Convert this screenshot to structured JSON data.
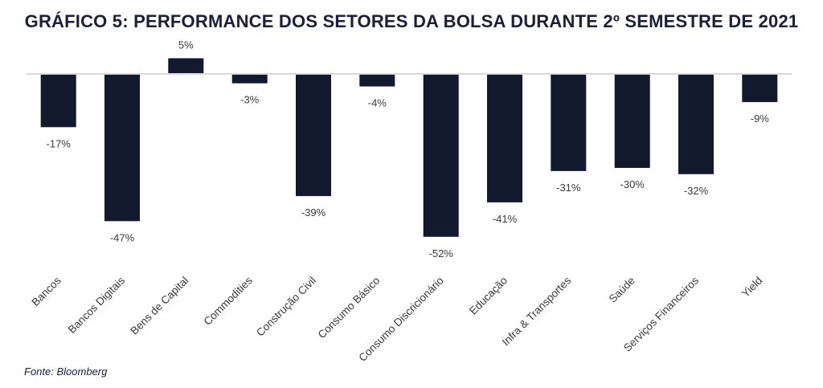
{
  "title": "GRÁFICO 5: PERFORMANCE DOS SETORES DA BOLSA DURANTE 2º SEMESTRE DE 2021",
  "source": "Fonte: Bloomberg",
  "colors": {
    "bar": "#131a2d",
    "zero_line": "#d8d8d8",
    "label": "#3a3a3a",
    "title": "#1a1f3a"
  },
  "chart_data": {
    "type": "bar",
    "categories": [
      "Bancos",
      "Bancos Digitais",
      "Bens de Capital",
      "Commodities",
      "Construção Civil",
      "Consumo Básico",
      "Consumo Discricionário",
      "Educação",
      "Infra & Transportes",
      "Saúde",
      "Serviços Financeiros",
      "Yield"
    ],
    "values": [
      -17,
      -47,
      5,
      -3,
      -39,
      -4,
      -52,
      -41,
      -31,
      -30,
      -32,
      -9
    ],
    "value_labels": [
      "-17%",
      "-47%",
      "5%",
      "-3%",
      "-39%",
      "-4%",
      "-52%",
      "-41%",
      "-31%",
      "-30%",
      "-32%",
      "-9%"
    ],
    "ylim": [
      -52,
      5
    ],
    "grid": false,
    "legend": "none",
    "xlabel": "",
    "ylabel": ""
  }
}
